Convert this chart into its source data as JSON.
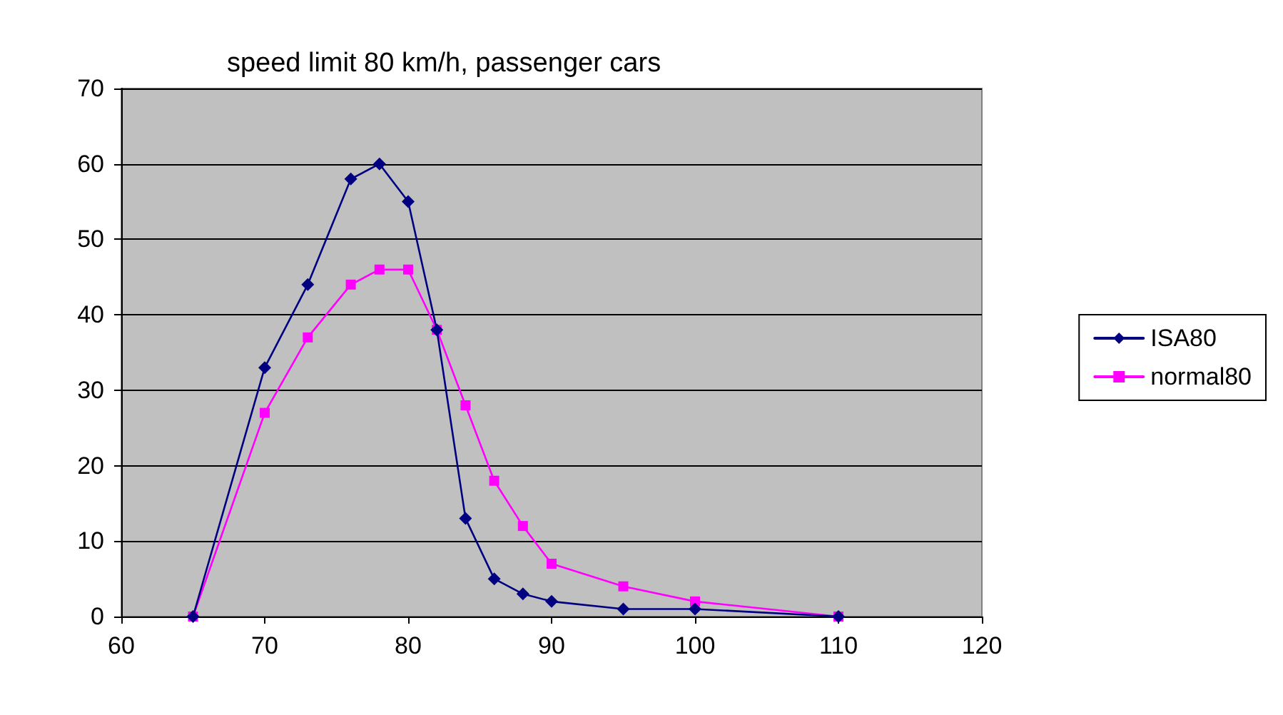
{
  "chart_data": {
    "type": "line",
    "title": "speed limit 80 km/h, passenger cars",
    "xlim": [
      60,
      120
    ],
    "xticks": [
      60,
      70,
      80,
      90,
      100,
      110,
      120
    ],
    "ylim": [
      0,
      70
    ],
    "yticks": [
      0,
      10,
      20,
      30,
      40,
      50,
      60,
      70
    ],
    "grid": "y",
    "legend": "right",
    "line_style": "solid",
    "series": [
      {
        "name": "ISA80",
        "color": "#000080",
        "marker": "diamond",
        "x": [
          65,
          70,
          73,
          76,
          78,
          80,
          82,
          84,
          86,
          88,
          90,
          95,
          100,
          110
        ],
        "values": [
          0,
          33,
          44,
          58,
          60,
          55,
          38,
          13,
          5,
          3,
          2,
          1,
          1,
          0
        ]
      },
      {
        "name": "normal80",
        "color": "#ff00ff",
        "marker": "square",
        "x": [
          65,
          70,
          73,
          76,
          78,
          80,
          82,
          84,
          86,
          88,
          90,
          95,
          100,
          110
        ],
        "values": [
          0,
          27,
          37,
          44,
          46,
          46,
          38,
          28,
          18,
          12,
          7,
          4,
          2,
          0
        ]
      }
    ]
  }
}
